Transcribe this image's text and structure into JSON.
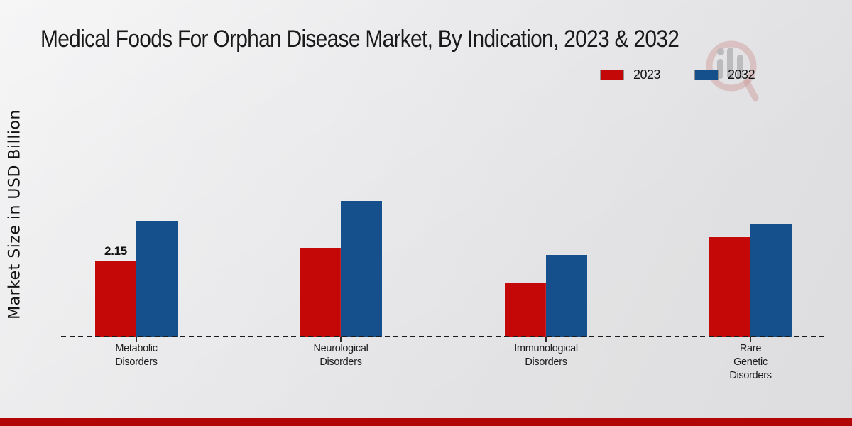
{
  "page": {
    "title": "Medical Foods For Orphan Disease Market, By Indication, 2023 & 2032"
  },
  "legend": {
    "items": [
      {
        "label": "2023",
        "color": "#c40707"
      },
      {
        "label": "2032",
        "color": "#16508c"
      }
    ]
  },
  "chart_data": {
    "type": "bar",
    "title": "Medical Foods For Orphan Disease Market, By Indication, 2023 & 2032",
    "xlabel": "",
    "ylabel": "Market Size in USD Billion",
    "categories": [
      "Metabolic Disorders",
      "Neurological Disorders",
      "Immunological Disorders",
      "Rare Genetic Disorders"
    ],
    "category_label_lines": [
      [
        "Metabolic",
        "Disorders"
      ],
      [
        "Neurological",
        "Disorders"
      ],
      [
        "Immunological",
        "Disorders"
      ],
      [
        "Rare",
        "Genetic",
        "Disorders"
      ]
    ],
    "series": [
      {
        "name": "2023",
        "color": "#c40707",
        "values": [
          2.15,
          2.51,
          1.51,
          2.81
        ]
      },
      {
        "name": "2032",
        "color": "#16508c",
        "values": [
          3.27,
          3.84,
          2.31,
          3.17
        ]
      }
    ],
    "data_labels": [
      {
        "series_index": 0,
        "category_index": 0,
        "text": "2.15"
      }
    ],
    "ylim": [
      0,
      4.2
    ],
    "grid": false,
    "axis_style": "dashed-baseline-only",
    "legend_position": "top-right"
  },
  "watermark": {
    "name": "market-research-logo"
  },
  "footer": {
    "accent_color": "#b20505"
  }
}
